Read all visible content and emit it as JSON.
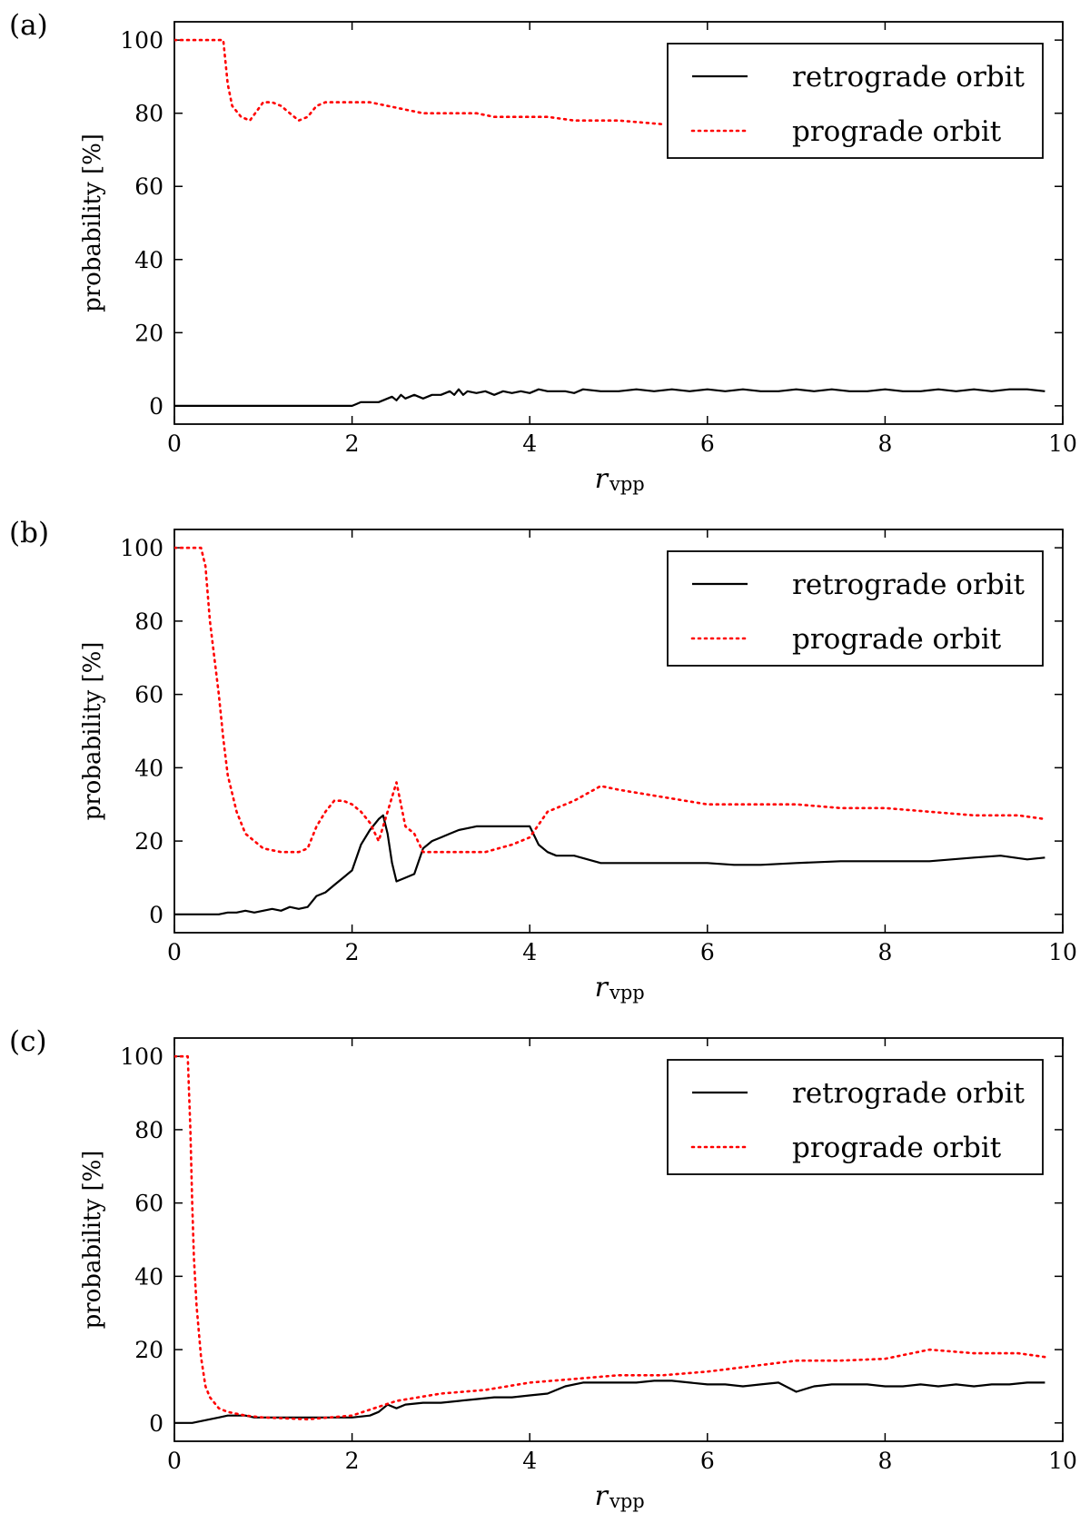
{
  "chart_data": [
    {
      "type": "line",
      "panel_label": "(a)",
      "xlabel_main": "r",
      "xlabel_sub": "vpp",
      "ylabel": "probability [%]",
      "xlim": [
        0,
        10
      ],
      "ylim": [
        -5,
        105
      ],
      "xticks": [
        "0",
        "2",
        "4",
        "6",
        "8",
        "10"
      ],
      "yticks": [
        "0",
        "20",
        "40",
        "60",
        "80",
        "100"
      ],
      "legend_position": "top-right",
      "series": [
        {
          "name": "retrograde orbit",
          "color": "#000000",
          "style": "solid",
          "x": [
            0,
            0.5,
            1.0,
            1.5,
            2.0,
            2.05,
            2.1,
            2.3,
            2.35,
            2.45,
            2.5,
            2.55,
            2.6,
            2.7,
            2.8,
            2.9,
            3.0,
            3.1,
            3.15,
            3.2,
            3.25,
            3.3,
            3.4,
            3.5,
            3.6,
            3.7,
            3.8,
            3.9,
            4.0,
            4.1,
            4.2,
            4.4,
            4.5,
            4.6,
            4.8,
            5.0,
            5.2,
            5.4,
            5.6,
            5.8,
            6.0,
            6.2,
            6.4,
            6.6,
            6.8,
            7.0,
            7.2,
            7.4,
            7.6,
            7.8,
            8.0,
            8.2,
            8.4,
            8.6,
            8.8,
            9.0,
            9.2,
            9.4,
            9.6,
            9.8
          ],
          "y": [
            0,
            0,
            0,
            0,
            0,
            0.5,
            1,
            1,
            1.5,
            2.5,
            1.5,
            3,
            2,
            3,
            2,
            3,
            3,
            4,
            3,
            4.5,
            3,
            4,
            3.5,
            4,
            3,
            4,
            3.5,
            4,
            3.5,
            4.5,
            4,
            4,
            3.5,
            4.5,
            4,
            4,
            4.5,
            4,
            4.5,
            4,
            4.5,
            4,
            4.5,
            4,
            4,
            4.5,
            4,
            4.5,
            4,
            4,
            4.5,
            4,
            4,
            4.5,
            4,
            4.5,
            4,
            4.5,
            4.5,
            4
          ]
        },
        {
          "name": "prograde orbit",
          "color": "#ff0000",
          "style": "dotted",
          "x": [
            0,
            0.3,
            0.55,
            0.6,
            0.65,
            0.75,
            0.85,
            1.0,
            1.1,
            1.2,
            1.3,
            1.4,
            1.5,
            1.6,
            1.7,
            1.8,
            2.0,
            2.2,
            2.4,
            2.6,
            2.8,
            3.0,
            3.2,
            3.4,
            3.6,
            3.8,
            4.0,
            4.2,
            4.5,
            5.0,
            5.5
          ],
          "y": [
            100,
            100,
            100,
            88,
            82,
            79,
            78,
            83,
            83,
            82,
            80,
            78,
            79,
            82,
            83,
            83,
            83,
            83,
            82,
            81,
            80,
            80,
            80,
            80,
            79,
            79,
            79,
            79,
            78,
            78,
            77
          ]
        }
      ]
    },
    {
      "type": "line",
      "panel_label": "(b)",
      "xlabel_main": "r",
      "xlabel_sub": "vpp",
      "ylabel": "probability [%]",
      "xlim": [
        0,
        10
      ],
      "ylim": [
        -5,
        105
      ],
      "xticks": [
        "0",
        "2",
        "4",
        "6",
        "8",
        "10"
      ],
      "yticks": [
        "0",
        "20",
        "40",
        "60",
        "80",
        "100"
      ],
      "legend_position": "top-right",
      "series": [
        {
          "name": "retrograde orbit",
          "color": "#000000",
          "style": "solid",
          "x": [
            0,
            0.5,
            0.6,
            0.7,
            0.8,
            0.9,
            1.0,
            1.1,
            1.2,
            1.3,
            1.4,
            1.5,
            1.6,
            1.7,
            1.8,
            1.9,
            2.0,
            2.1,
            2.2,
            2.3,
            2.35,
            2.4,
            2.45,
            2.5,
            2.6,
            2.7,
            2.8,
            2.9,
            3.0,
            3.1,
            3.2,
            3.4,
            3.6,
            3.8,
            4.0,
            4.1,
            4.2,
            4.3,
            4.5,
            4.8,
            5.0,
            5.5,
            6.0,
            6.3,
            6.6,
            7.0,
            7.5,
            8.0,
            8.5,
            9.0,
            9.3,
            9.6,
            9.8
          ],
          "y": [
            0,
            0,
            0.5,
            0.5,
            1,
            0.5,
            1,
            1.5,
            1,
            2,
            1.5,
            2,
            5,
            6,
            8,
            10,
            12,
            19,
            23,
            26,
            27,
            22,
            14,
            9,
            10,
            11,
            18,
            20,
            21,
            22,
            23,
            24,
            24,
            24,
            24,
            19,
            17,
            16,
            16,
            14,
            14,
            14,
            14,
            13.5,
            13.5,
            14,
            14.5,
            14.5,
            14.5,
            15.5,
            16,
            15,
            15.5
          ]
        },
        {
          "name": "prograde orbit",
          "color": "#ff0000",
          "style": "dotted",
          "x": [
            0,
            0.3,
            0.35,
            0.4,
            0.45,
            0.5,
            0.55,
            0.6,
            0.7,
            0.8,
            0.9,
            1.0,
            1.2,
            1.3,
            1.4,
            1.5,
            1.6,
            1.7,
            1.8,
            1.9,
            2.0,
            2.1,
            2.2,
            2.3,
            2.4,
            2.5,
            2.6,
            2.7,
            2.8,
            3.0,
            3.5,
            3.8,
            4.0,
            4.2,
            4.5,
            4.8,
            5.0,
            5.5,
            6.0,
            6.5,
            7.0,
            7.5,
            8.0,
            8.5,
            9.0,
            9.5,
            9.8
          ],
          "y": [
            100,
            100,
            95,
            80,
            70,
            60,
            48,
            38,
            28,
            22,
            20,
            18,
            17,
            17,
            17,
            18,
            24,
            28,
            31,
            31,
            30,
            28,
            25,
            20,
            28,
            36,
            24,
            22,
            17,
            17,
            17,
            19,
            21,
            28,
            31,
            35,
            34,
            32,
            30,
            30,
            30,
            29,
            29,
            28,
            27,
            27,
            26
          ]
        }
      ]
    },
    {
      "type": "line",
      "panel_label": "(c)",
      "xlabel_main": "r",
      "xlabel_sub": "vpp",
      "ylabel": "probability [%]",
      "xlim": [
        0,
        10
      ],
      "ylim": [
        -5,
        105
      ],
      "xticks": [
        "0",
        "2",
        "4",
        "6",
        "8",
        "10"
      ],
      "yticks": [
        "0",
        "20",
        "40",
        "60",
        "80",
        "100"
      ],
      "legend_position": "top-right",
      "series": [
        {
          "name": "retrograde orbit",
          "color": "#000000",
          "style": "solid",
          "x": [
            0,
            0.2,
            0.3,
            0.4,
            0.5,
            0.6,
            0.7,
            0.8,
            0.9,
            1.0,
            1.2,
            1.4,
            1.6,
            1.8,
            2.0,
            2.2,
            2.3,
            2.4,
            2.5,
            2.6,
            2.8,
            3.0,
            3.2,
            3.4,
            3.6,
            3.8,
            4.0,
            4.2,
            4.4,
            4.6,
            4.8,
            5.0,
            5.2,
            5.4,
            5.6,
            5.8,
            6.0,
            6.2,
            6.4,
            6.6,
            6.8,
            7.0,
            7.2,
            7.4,
            7.6,
            7.8,
            8.0,
            8.2,
            8.4,
            8.6,
            8.8,
            9.0,
            9.2,
            9.4,
            9.6,
            9.8
          ],
          "y": [
            0,
            0,
            0.5,
            1,
            1.5,
            2,
            2,
            2,
            1.5,
            1.5,
            1.5,
            1.5,
            1.5,
            1.5,
            1.5,
            2,
            3,
            5,
            4,
            5,
            5.5,
            5.5,
            6,
            6.5,
            7,
            7,
            7.5,
            8,
            10,
            11,
            11,
            11,
            11,
            11.5,
            11.5,
            11,
            10.5,
            10.5,
            10,
            10.5,
            11,
            8.5,
            10,
            10.5,
            10.5,
            10.5,
            10,
            10,
            10.5,
            10,
            10.5,
            10,
            10.5,
            10.5,
            11,
            11
          ]
        },
        {
          "name": "prograde orbit",
          "color": "#ff0000",
          "style": "dotted",
          "x": [
            0,
            0.15,
            0.18,
            0.2,
            0.22,
            0.25,
            0.3,
            0.35,
            0.4,
            0.5,
            0.6,
            0.8,
            1.0,
            1.5,
            2.0,
            2.5,
            3.0,
            3.5,
            4.0,
            4.5,
            5.0,
            5.5,
            6.0,
            6.5,
            7.0,
            7.5,
            8.0,
            8.5,
            9.0,
            9.5,
            9.8
          ],
          "y": [
            100,
            100,
            80,
            60,
            45,
            32,
            18,
            10,
            7,
            4,
            3,
            2,
            1.5,
            1,
            2,
            6,
            8,
            9,
            11,
            12,
            13,
            13,
            14,
            15.5,
            17,
            17,
            17.5,
            20,
            19,
            19,
            18
          ]
        }
      ]
    }
  ]
}
